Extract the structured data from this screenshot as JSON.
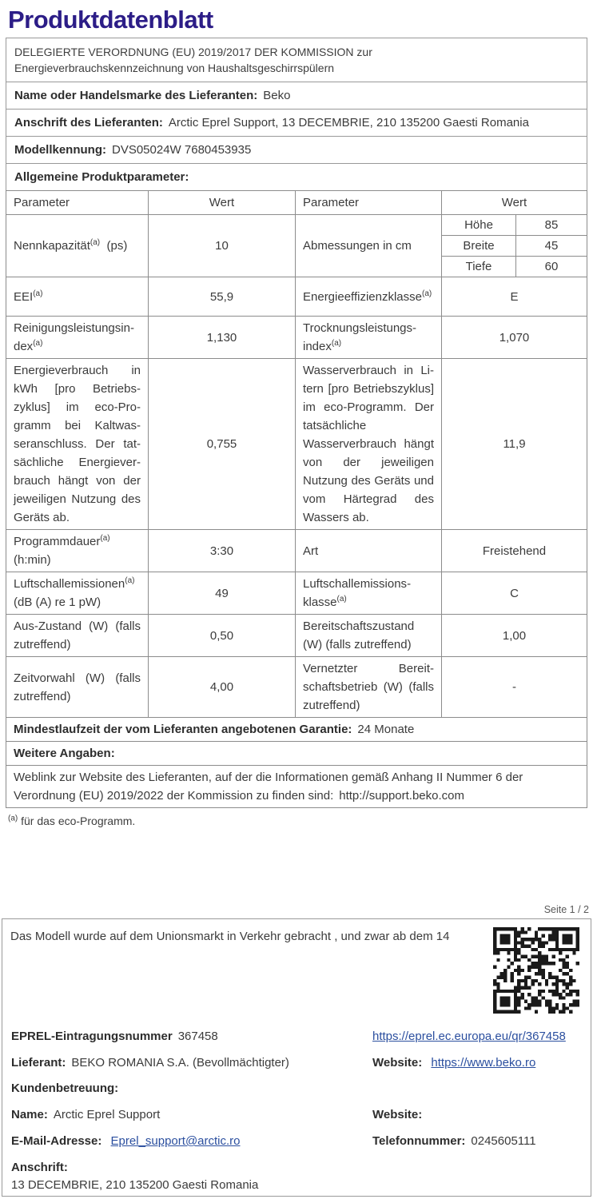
{
  "colors": {
    "title_accent": "#2c1d87",
    "link": "#2b4f9f",
    "text": "#3b3b3b",
    "border": "#8c8c8c"
  },
  "page": {
    "title": "Produktdatenblatt",
    "page_label": "Seite 1 / 2"
  },
  "header": {
    "regulation": "DELEGIERTE VERORDNUNG (EU) 2019/2017 DER KOMMISSION zur Energieverbrauchskennzeichnung von Haushaltsgeschirrspülern"
  },
  "supplier": {
    "name_label": "Name oder Handelsmarke des Lieferanten:",
    "name_value": "Beko",
    "address_label": "Anschrift des Lieferanten:",
    "address_value": "Arctic Eprel Support, 13 DECEMBRIE, 210 135200 Gaesti Romania",
    "model_label": "Modellkennung:",
    "model_value": "DVS05024W 7680453935",
    "general_label": "Allgemeine Produktparameter:"
  },
  "table": {
    "headers": {
      "param1": "Parameter",
      "wert1": "Wert",
      "param2": "Parameter",
      "wert2": "Wert"
    },
    "capacity": {
      "param": "Nennkapazität^(a)  (ps)",
      "value": "10",
      "param2": "Abmessungen in cm",
      "dims": [
        {
          "label": "Höhe",
          "value": "85"
        },
        {
          "label": "Breite",
          "value": "45"
        },
        {
          "label": "Tiefe",
          "value": "60"
        }
      ]
    },
    "eei": {
      "param": "EEI^(a)",
      "value": "55,9",
      "param2": "Energieeffizienzklas­se^(a)",
      "value2": "E"
    },
    "cleaning": {
      "param": "Reinigungsleistungsin­dex^(a)",
      "value": "1,130",
      "param2": "Trocknungsleistungs­index^(a)",
      "value2": "1,070"
    },
    "energy": {
      "param": "Energieverbrauch in kWh [pro Betriebs­zyklus] im eco-Pro­gramm bei Kaltwas­seranschluss. Der tat­sächliche Energiever­brauch hängt von der jeweiligen Nut­zung des Geräts ab.",
      "value": "0,755",
      "param2": "Wasserverbrauch in Li­tern [pro Betriebs­zyklus] im eco-Pro­gramm. Der tatsächli­che Wasserverbrauch hängt von der jeweili­gen Nutzung des Ge­räts und vom Härte­grad des Wassers ab.",
      "value2": "11,9"
    },
    "duration": {
      "param": "Programmdauer^(a) (h:min)",
      "value": "3:30",
      "param2": "Art",
      "value2": "Freistehend"
    },
    "noise": {
      "param": "Luftschallemissio­nen^(a)  (dB (A) re 1 pW)",
      "value": "49",
      "param2": "Luftschallemissions­klasse^(a)",
      "value2": "C"
    },
    "off_mode": {
      "param": "Aus-Zustand (W) (falls zutreffend)",
      "value": "0,50",
      "param2": "Bereitschaftszustand (W) (falls zutreffend)",
      "value2": "1,00"
    },
    "delay": {
      "param": "Zeitvorwahl (W) (falls zutreffend)",
      "value": "4,00",
      "param2": "Vernetzter Bereit­schaftsbetrieb (W) (falls zutreffend)",
      "value2": "-"
    },
    "warranty": {
      "label": "Mindestlaufzeit der vom Lieferanten angebotenen Garantie:",
      "value": "24 Monate"
    },
    "more_info_label": "Weitere Angaben:",
    "weblink": {
      "text": "Weblink zur Website des Lieferanten, auf der die Informationen gemäß Anhang II Nummer 6 der Verordnung (EU) 2019/2022 der Kommission zu finden sind:",
      "url": "http://support.beko.com"
    },
    "footnote": "^(a) für das eco-Programm."
  },
  "bottom": {
    "market_text": "Das Modell wurde auf dem Unionsmarkt in Verkehr gebracht , und zwar ab dem 14",
    "qr_icon": "qr-code",
    "eprel_label": "EPREL-Eintragungsnummer",
    "eprel_value": "367458",
    "eprel_link": "https://eprel.ec.europa.eu/qr/367458",
    "supplier_label": "Lieferant:",
    "supplier_value": "BEKO ROMANIA S.A. (Bevollmächtigter)",
    "website_label": "Website:",
    "website_link": "https://www.beko.ro",
    "support_label": "Kundenbetreuung:",
    "contact_name_label": "Name:",
    "contact_name_value": "Arctic Eprel Support",
    "website2_label": "Website:",
    "email_label": "E-Mail-Adresse:",
    "email_link": "Eprel_support@arctic.ro",
    "phone_label": "Telefonnummer:",
    "phone_value": "0245605111",
    "address_label": "Anschrift:",
    "address_value": "13 DECEMBRIE, 210 135200 Gaesti Romania"
  }
}
